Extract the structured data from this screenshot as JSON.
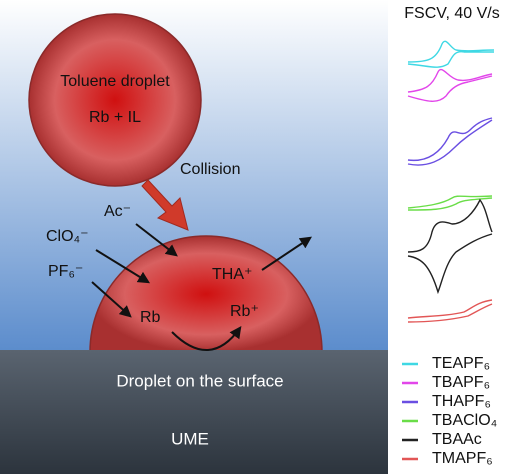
{
  "diagram": {
    "droplet_top": {
      "title": "Toluene droplet",
      "content": "Rb + IL"
    },
    "collision": "Collision",
    "ions": {
      "ac": "Ac⁻",
      "clo4": "ClO₄⁻",
      "pf6": "PF₆⁻",
      "tha": "THA⁺",
      "rb": "Rb",
      "rb_plus": "Rb⁺"
    },
    "surface": "Droplet on the surface",
    "electrode": "UME",
    "panel_title": "FSCV, 40 V/s",
    "legend": [
      {
        "name": "TEAPF₆",
        "color": "#3fd8e4"
      },
      {
        "name": "TBAPF₆",
        "color": "#e246ea"
      },
      {
        "name": "THAPF₆",
        "color": "#6a4fe2"
      },
      {
        "name": "TBAClO₄",
        "color": "#6add48"
      },
      {
        "name": "TBAAc",
        "color": "#222222"
      },
      {
        "name": "TMAPF₆",
        "color": "#e25656"
      }
    ]
  }
}
